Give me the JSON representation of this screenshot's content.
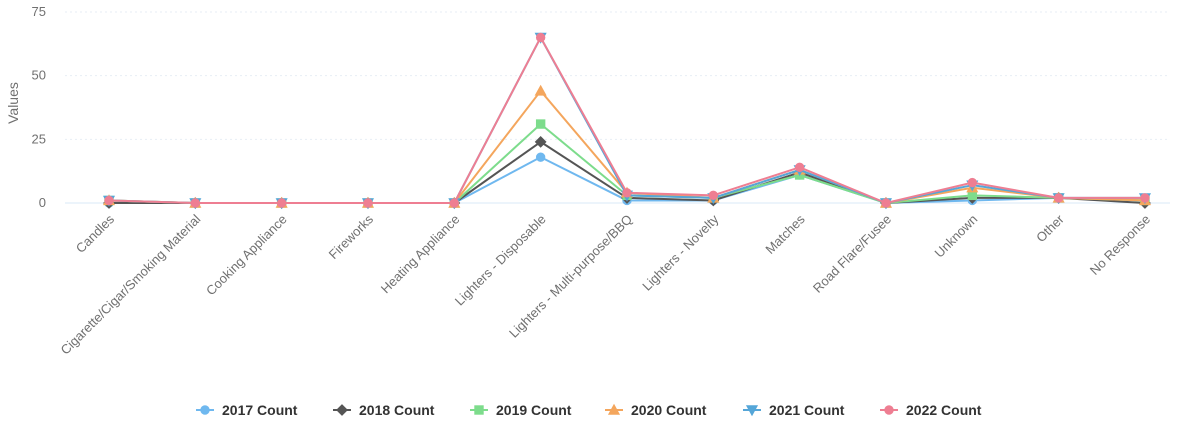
{
  "chart_data": {
    "type": "line",
    "title": "",
    "xlabel": "",
    "ylabel": "Values",
    "ylim": [
      0,
      75
    ],
    "yticks": [
      0,
      25,
      50,
      75
    ],
    "grid": true,
    "legend_position": "bottom",
    "categories": [
      "Candles",
      "Cigarette/Cigar/Smoking Material",
      "Cooking Appliance",
      "Fireworks",
      "Heating Appliance",
      "Lighters - Disposable",
      "Lighters - Multi-purpose/BBQ",
      "Lighters - Novelty",
      "Matches",
      "Road Flare/Fusee",
      "Unknown",
      "Other",
      "No Response"
    ],
    "series": [
      {
        "name": "2017 Count",
        "color": "#6fb8ef",
        "marker": "circle",
        "values": [
          0,
          0,
          0,
          0,
          0,
          18,
          1,
          1,
          11,
          0,
          1,
          2,
          1
        ]
      },
      {
        "name": "2018 Count",
        "color": "#555555",
        "marker": "diamond",
        "values": [
          0,
          0,
          0,
          0,
          0,
          24,
          2,
          1,
          12,
          0,
          2,
          2,
          0
        ]
      },
      {
        "name": "2019 Count",
        "color": "#7ddc8c",
        "marker": "square",
        "values": [
          1,
          0,
          0,
          0,
          0,
          31,
          3,
          2,
          11,
          0,
          3,
          2,
          1
        ]
      },
      {
        "name": "2020 Count",
        "color": "#f4a65d",
        "marker": "triangle",
        "values": [
          1,
          0,
          0,
          0,
          0,
          44,
          4,
          2,
          13,
          0,
          6,
          2,
          1
        ]
      },
      {
        "name": "2021 Count",
        "color": "#55a6d8",
        "marker": "triangle-down",
        "values": [
          1,
          0,
          0,
          0,
          0,
          65,
          3,
          2,
          13,
          0,
          7,
          2,
          2
        ]
      },
      {
        "name": "2022 Count",
        "color": "#ee7e92",
        "marker": "circle",
        "values": [
          1,
          0,
          0,
          0,
          0,
          65,
          4,
          3,
          14,
          0,
          8,
          2,
          2
        ]
      }
    ]
  }
}
